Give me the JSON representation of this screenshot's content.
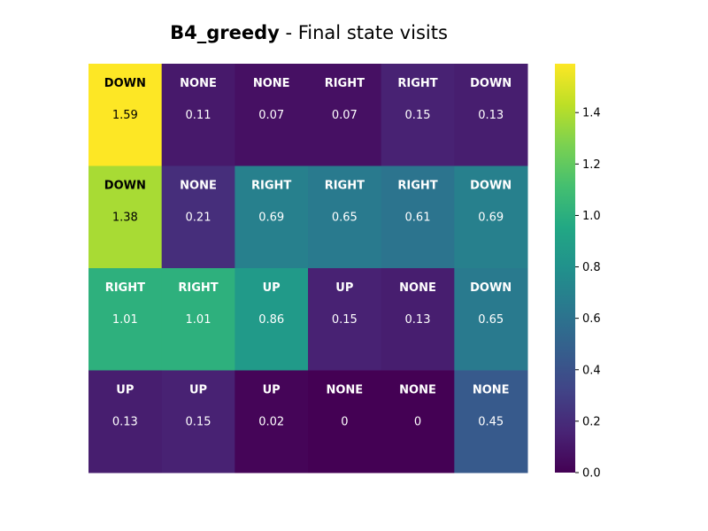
{
  "chart_data": {
    "type": "heatmap",
    "title_bold": "B4_greedy",
    "title_rest": " - Final state visits",
    "colormap": "viridis",
    "color_range": [
      0.0,
      1.59
    ],
    "colorbar_ticks": [
      "0.0",
      "0.2",
      "0.4",
      "0.6",
      "0.8",
      "1.0",
      "1.2",
      "1.4"
    ],
    "colorbar_tick_values": [
      0.0,
      0.2,
      0.4,
      0.6,
      0.8,
      1.0,
      1.2,
      1.4
    ],
    "rows": 4,
    "cols": 6,
    "values": [
      [
        1.59,
        0.11,
        0.07,
        0.07,
        0.15,
        0.13
      ],
      [
        1.38,
        0.21,
        0.69,
        0.65,
        0.61,
        0.69
      ],
      [
        1.01,
        1.01,
        0.86,
        0.15,
        0.13,
        0.65
      ],
      [
        0.13,
        0.15,
        0.02,
        0,
        0,
        0.45
      ]
    ],
    "value_labels": [
      [
        "1.59",
        "0.11",
        "0.07",
        "0.07",
        "0.15",
        "0.13"
      ],
      [
        "1.38",
        "0.21",
        "0.69",
        "0.65",
        "0.61",
        "0.69"
      ],
      [
        "1.01",
        "1.01",
        "0.86",
        "0.15",
        "0.13",
        "0.65"
      ],
      [
        "0.13",
        "0.15",
        "0.02",
        "0",
        "0",
        "0.45"
      ]
    ],
    "actions": [
      [
        "DOWN",
        "NONE",
        "NONE",
        "RIGHT",
        "RIGHT",
        "DOWN"
      ],
      [
        "DOWN",
        "NONE",
        "RIGHT",
        "RIGHT",
        "RIGHT",
        "DOWN"
      ],
      [
        "RIGHT",
        "RIGHT",
        "UP",
        "UP",
        "NONE",
        "DOWN"
      ],
      [
        "UP",
        "UP",
        "UP",
        "NONE",
        "NONE",
        "NONE"
      ]
    ]
  }
}
